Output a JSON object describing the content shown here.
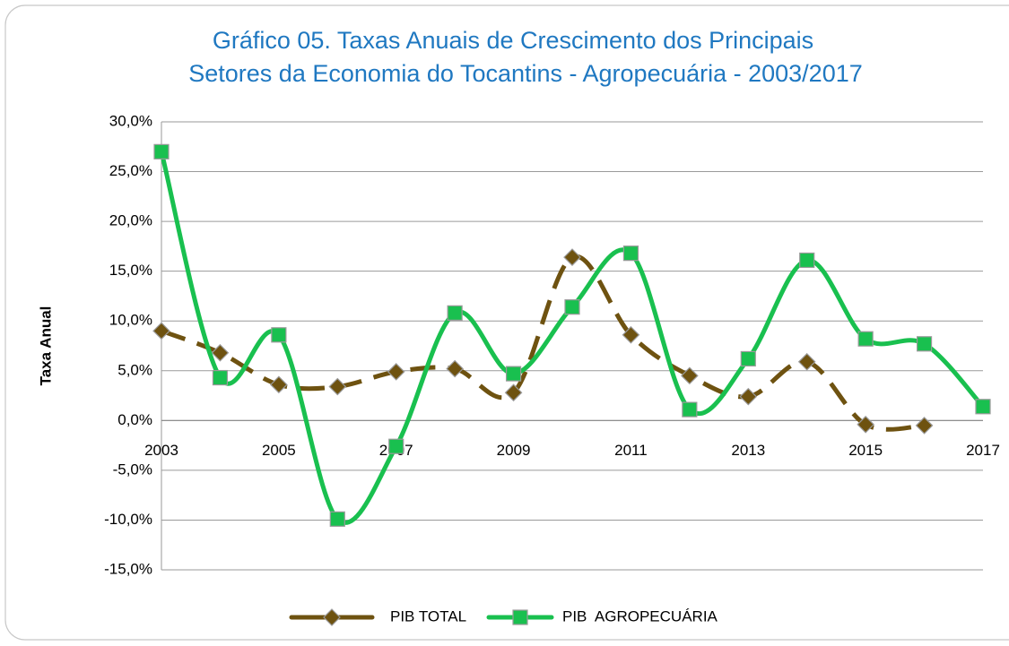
{
  "chart_data": {
    "type": "line",
    "title": [
      "Gráfico 05. Taxas Anuais de Crescimento dos Principais",
      "Setores da Economia do Tocantins - Agropecuária - 2003/2017"
    ],
    "ylabel": "Taxa Anual",
    "x": [
      2003,
      2004,
      2005,
      2006,
      2007,
      2008,
      2009,
      2010,
      2011,
      2012,
      2013,
      2014,
      2015,
      2016,
      2017
    ],
    "xlim": [
      2003,
      2017
    ],
    "xticks": [
      2003,
      2005,
      2007,
      2009,
      2011,
      2013,
      2015,
      2017
    ],
    "ylim": [
      -15,
      30
    ],
    "yticks": [
      {
        "value": -15,
        "label": "-15,0%"
      },
      {
        "value": -10,
        "label": "-10,0%"
      },
      {
        "value": -5,
        "label": "-5,0%"
      },
      {
        "value": 0,
        "label": "0,0%"
      },
      {
        "value": 5,
        "label": "5,0%"
      },
      {
        "value": 10,
        "label": "10,0%"
      },
      {
        "value": 15,
        "label": "15,0%"
      },
      {
        "value": 20,
        "label": "20,0%"
      },
      {
        "value": 25,
        "label": "25,0%"
      },
      {
        "value": 30,
        "label": "30,0%"
      }
    ],
    "grid": true,
    "legend": "bottom",
    "series": [
      {
        "name": "PIB TOTAL",
        "color": "#6e5210",
        "dashed": true,
        "marker": "diamond",
        "values": [
          9.0,
          6.8,
          3.6,
          3.4,
          4.9,
          5.2,
          2.8,
          16.4,
          8.6,
          4.5,
          2.4,
          5.9,
          -0.4,
          -0.5,
          null
        ]
      },
      {
        "name": "PIB  AGROPECUÁRIA",
        "color": "#19c04f",
        "dashed": false,
        "marker": "square",
        "values": [
          27.0,
          4.3,
          8.6,
          -9.9,
          -2.6,
          10.8,
          4.7,
          11.4,
          16.8,
          1.1,
          6.2,
          16.1,
          8.2,
          7.7,
          1.4
        ]
      }
    ]
  }
}
